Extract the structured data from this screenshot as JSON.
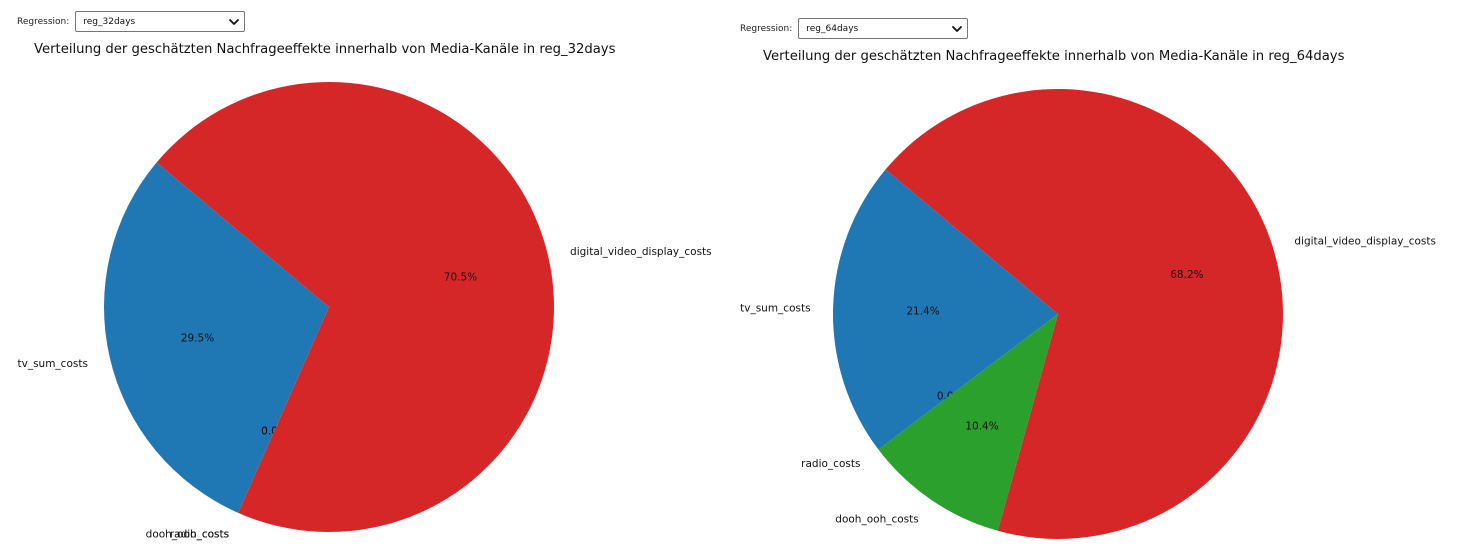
{
  "left": {
    "selector": {
      "label": "Regression:",
      "value": "reg_32days"
    },
    "chart": {
      "title": "Verteilung der geschätzten Nachfrageeffekte innerhalb von Media-Kanäle in reg_32days"
    }
  },
  "right": {
    "selector": {
      "label": "Regression:",
      "value": "reg_64days"
    },
    "chart": {
      "title": "Verteilung der geschätzten Nachfrageeffekte innerhalb von Media-Kanäle in reg_64days"
    }
  },
  "chart_data": [
    {
      "type": "pie",
      "title": "Verteilung der geschätzten Nachfrageeffekte innerhalb von Media-Kanäle in reg_32days",
      "slices": [
        {
          "label": "tv_sum_costs",
          "value": 29.5,
          "pct_label": "29.5%",
          "color": "#1f77b4"
        },
        {
          "label": "radio_costs",
          "value": 0.0,
          "pct_label": "0.0%",
          "color": "#ff7f0e"
        },
        {
          "label": "dooh_ooh_costs",
          "value": 0.0,
          "pct_label": "0.0%",
          "color": "#2ca02c"
        },
        {
          "label": "digital_video_display_costs",
          "value": 70.5,
          "pct_label": "70.5%",
          "color": "#d62728"
        }
      ]
    },
    {
      "type": "pie",
      "title": "Verteilung der geschätzten Nachfrageeffekte innerhalb von Media-Kanäle in reg_64days",
      "slices": [
        {
          "label": "tv_sum_costs",
          "value": 21.4,
          "pct_label": "21.4%",
          "color": "#1f77b4"
        },
        {
          "label": "radio_costs",
          "value": 0.0,
          "pct_label": "0.0%",
          "color": "#ff7f0e"
        },
        {
          "label": "dooh_ooh_costs",
          "value": 10.4,
          "pct_label": "10.4%",
          "color": "#2ca02c"
        },
        {
          "label": "digital_video_display_costs",
          "value": 68.2,
          "pct_label": "68.2%",
          "color": "#d62728"
        }
      ]
    }
  ]
}
